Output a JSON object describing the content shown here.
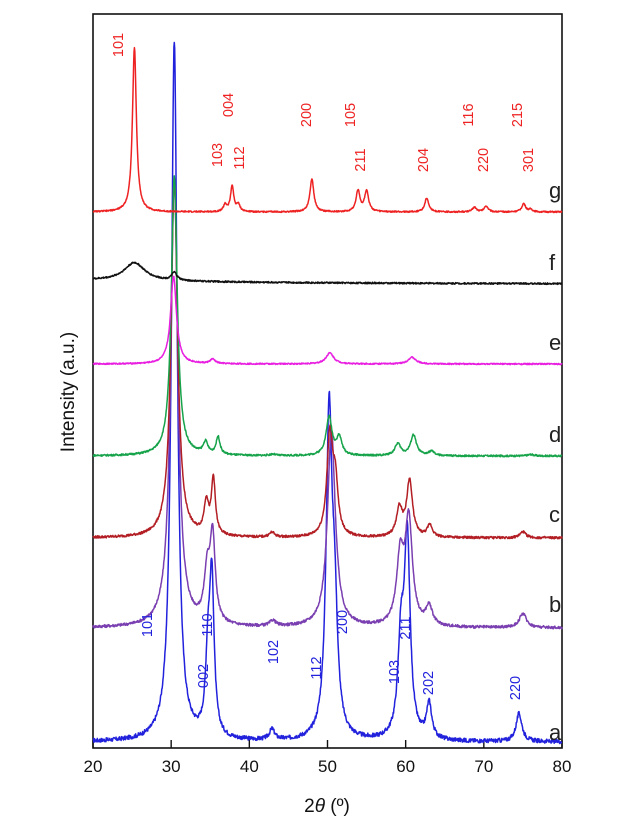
{
  "chart_data": {
    "type": "line",
    "title": "",
    "xlabel_prefix": "2",
    "xlabel_symbol": "θ",
    "xlabel_suffix": " (º)",
    "ylabel": "Intensity (a.u.)",
    "xlim": [
      20,
      80
    ],
    "xticks": [
      "20",
      "30",
      "40",
      "50",
      "60",
      "70",
      "80"
    ],
    "grid": false,
    "y_ticks_shown": false,
    "series": [
      {
        "name": "a",
        "color": "#2222dd",
        "peaks": [
          {
            "x": 30.4,
            "h": 1.0,
            "w": 0.45
          },
          {
            "x": 34.7,
            "h": 0.1,
            "w": 0.35
          },
          {
            "x": 35.2,
            "h": 0.22,
            "w": 0.35
          },
          {
            "x": 42.9,
            "h": 0.015,
            "w": 0.4
          },
          {
            "x": 50.2,
            "h": 0.45,
            "w": 0.45
          },
          {
            "x": 50.9,
            "h": 0.16,
            "w": 0.45
          },
          {
            "x": 59.4,
            "h": 0.13,
            "w": 0.45
          },
          {
            "x": 60.2,
            "h": 0.28,
            "w": 0.45
          },
          {
            "x": 63.0,
            "h": 0.05,
            "w": 0.4
          },
          {
            "x": 74.5,
            "h": 0.04,
            "w": 0.45
          }
        ],
        "hkl_labels": [
          {
            "text": "101",
            "x": 30.4
          },
          {
            "text": "002",
            "x": 34.7
          },
          {
            "text": "110",
            "x": 35.3
          },
          {
            "text": "102",
            "x": 43.0
          },
          {
            "text": "112",
            "x": 49.8
          },
          {
            "text": "200",
            "x": 51.1
          },
          {
            "text": "103",
            "x": 59.2
          },
          {
            "text": "211",
            "x": 60.4
          },
          {
            "text": "202",
            "x": 63.0
          },
          {
            "text": "220",
            "x": 74.6
          }
        ]
      },
      {
        "name": "b",
        "color": "#7a3fb0",
        "peaks": [
          {
            "x": 30.4,
            "h": 0.95,
            "w": 0.55
          },
          {
            "x": 34.6,
            "h": 0.1,
            "w": 0.45
          },
          {
            "x": 35.3,
            "h": 0.18,
            "w": 0.4
          },
          {
            "x": 43.0,
            "h": 0.012,
            "w": 0.45
          },
          {
            "x": 50.5,
            "h": 0.42,
            "w": 0.6
          },
          {
            "x": 59.3,
            "h": 0.14,
            "w": 0.55
          },
          {
            "x": 60.4,
            "h": 0.22,
            "w": 0.55
          },
          {
            "x": 63.0,
            "h": 0.04,
            "w": 0.5
          },
          {
            "x": 75.0,
            "h": 0.03,
            "w": 0.55
          }
        ]
      },
      {
        "name": "c",
        "color": "#b21e24",
        "peaks": [
          {
            "x": 30.4,
            "h": 0.9,
            "w": 0.5
          },
          {
            "x": 34.5,
            "h": 0.08,
            "w": 0.35
          },
          {
            "x": 35.4,
            "h": 0.14,
            "w": 0.3
          },
          {
            "x": 42.9,
            "h": 0.012,
            "w": 0.4
          },
          {
            "x": 50.3,
            "h": 0.25,
            "w": 0.45
          },
          {
            "x": 51.0,
            "h": 0.12,
            "w": 0.4
          },
          {
            "x": 59.2,
            "h": 0.07,
            "w": 0.45
          },
          {
            "x": 60.5,
            "h": 0.14,
            "w": 0.45
          },
          {
            "x": 63.1,
            "h": 0.03,
            "w": 0.4
          },
          {
            "x": 75.0,
            "h": 0.015,
            "w": 0.45
          }
        ]
      },
      {
        "name": "d",
        "color": "#16a34a",
        "peaks": [
          {
            "x": 30.4,
            "h": 0.95,
            "w": 0.45
          },
          {
            "x": 34.4,
            "h": 0.04,
            "w": 0.35
          },
          {
            "x": 36.0,
            "h": 0.06,
            "w": 0.3
          },
          {
            "x": 43.0,
            "h": 0.005,
            "w": 0.4
          },
          {
            "x": 50.2,
            "h": 0.13,
            "w": 0.45
          },
          {
            "x": 51.5,
            "h": 0.06,
            "w": 0.4
          },
          {
            "x": 59.0,
            "h": 0.04,
            "w": 0.45
          },
          {
            "x": 61.0,
            "h": 0.07,
            "w": 0.45
          },
          {
            "x": 63.3,
            "h": 0.015,
            "w": 0.4
          },
          {
            "x": 76.0,
            "h": 0.005,
            "w": 0.45
          }
        ]
      },
      {
        "name": "e",
        "color": "#e81ee0",
        "peaks": [
          {
            "x": 30.3,
            "h": 0.4,
            "w": 0.45
          },
          {
            "x": 35.3,
            "h": 0.02,
            "w": 0.4
          },
          {
            "x": 50.3,
            "h": 0.05,
            "w": 0.6
          },
          {
            "x": 60.8,
            "h": 0.03,
            "w": 0.6
          }
        ]
      },
      {
        "name": "f",
        "color": "#111111",
        "peaks": [
          {
            "x": 25.3,
            "h": 0.07,
            "w": 1.6
          },
          {
            "x": 30.4,
            "h": 0.03,
            "w": 0.4
          }
        ]
      },
      {
        "name": "g",
        "color": "#ee2222",
        "peaks": [
          {
            "x": 25.3,
            "h": 0.7,
            "w": 0.3
          },
          {
            "x": 36.9,
            "h": 0.03,
            "w": 0.25
          },
          {
            "x": 37.8,
            "h": 0.11,
            "w": 0.25
          },
          {
            "x": 38.6,
            "h": 0.03,
            "w": 0.25
          },
          {
            "x": 48.0,
            "h": 0.14,
            "w": 0.3
          },
          {
            "x": 53.9,
            "h": 0.09,
            "w": 0.3
          },
          {
            "x": 55.0,
            "h": 0.09,
            "w": 0.3
          },
          {
            "x": 62.7,
            "h": 0.06,
            "w": 0.3
          },
          {
            "x": 68.8,
            "h": 0.02,
            "w": 0.3
          },
          {
            "x": 70.3,
            "h": 0.025,
            "w": 0.3
          },
          {
            "x": 75.1,
            "h": 0.035,
            "w": 0.3
          },
          {
            "x": 76.0,
            "h": 0.01,
            "w": 0.3
          }
        ],
        "hkl_labels": [
          {
            "text": "101",
            "x": 23.8
          },
          {
            "text": "103",
            "x": 36.3
          },
          {
            "text": "004",
            "x": 37.7
          },
          {
            "text": "112",
            "x": 38.6
          },
          {
            "text": "200",
            "x": 47.6
          },
          {
            "text": "105",
            "x": 53.6
          },
          {
            "text": "211",
            "x": 55.0
          },
          {
            "text": "204",
            "x": 62.6
          },
          {
            "text": "116",
            "x": 68.7
          },
          {
            "text": "220",
            "x": 70.3
          },
          {
            "text": "215",
            "x": 74.5
          },
          {
            "text": "301",
            "x": 75.5
          }
        ]
      }
    ]
  }
}
